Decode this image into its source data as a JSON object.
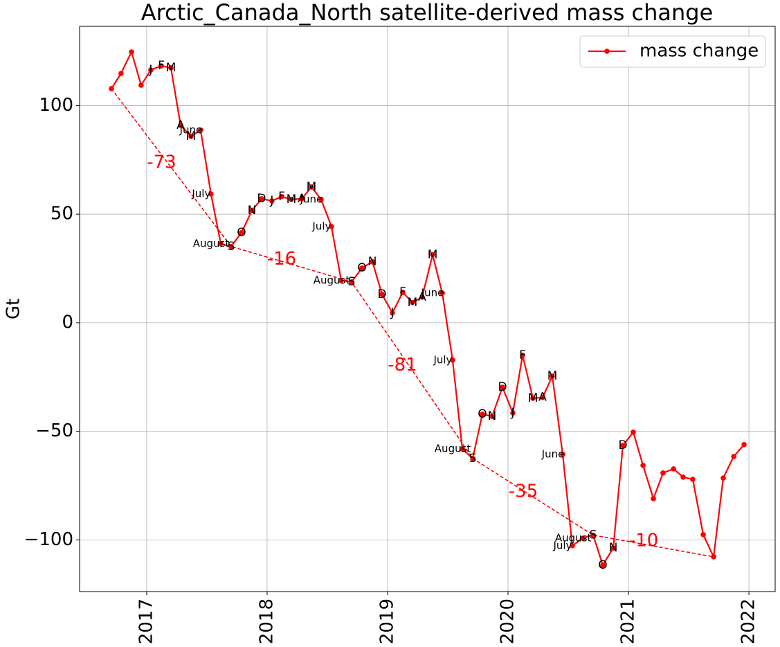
{
  "chart_data": {
    "type": "line",
    "title": "Arctic_Canada_North satellite-derived mass change",
    "y_label": "Gt",
    "xlim": [
      2016.443,
      2022.218
    ],
    "xticks": [
      2017,
      2018,
      2019,
      2020,
      2021,
      2022
    ],
    "ylim": [
      -123.8,
      136.5
    ],
    "yticks": [
      {
        "value": -100,
        "label": "−100"
      },
      {
        "value": -50,
        "label": "−50"
      },
      0,
      50,
      100
    ],
    "grid": true,
    "legend": "upper right",
    "series": [
      {
        "name": "mass change",
        "color": "#ff0000",
        "x": [
          2016.707,
          2016.787,
          2016.874,
          2016.954,
          2017.034,
          2017.121,
          2017.201,
          2017.282,
          2017.368,
          2017.448,
          2017.534,
          2017.615,
          2017.701,
          2017.787,
          2017.874,
          2017.954,
          2018.04,
          2018.121,
          2018.201,
          2018.287,
          2018.368,
          2018.448,
          2018.534,
          2018.615,
          2018.701,
          2018.787,
          2018.874,
          2018.954,
          2019.04,
          2019.126,
          2019.207,
          2019.287,
          2019.374,
          2019.454,
          2019.54,
          2019.621,
          2019.707,
          2019.787,
          2019.868,
          2019.954,
          2020.04,
          2020.121,
          2020.207,
          2020.287,
          2020.368,
          2020.454,
          2020.534,
          2020.621,
          2020.707,
          2020.787,
          2020.874,
          2020.954,
          2021.04,
          2021.121,
          2021.207,
          2021.287,
          2021.374,
          2021.454,
          2021.534,
          2021.621,
          2021.707,
          2021.787,
          2021.874,
          2021.96
        ],
        "values": [
          107.8,
          114.8,
          124.7,
          109.4,
          116.4,
          118.3,
          117.4,
          90.9,
          85.8,
          88.7,
          59.3,
          36.4,
          35.1,
          41.5,
          51.7,
          57.1,
          56.1,
          58.1,
          56.8,
          57.1,
          62.5,
          56.8,
          44.3,
          19.5,
          18.8,
          25.2,
          28.1,
          13.1,
          4.5,
          14.0,
          9.3,
          11.8,
          31.3,
          13.7,
          -17.2,
          -58.1,
          -62.5,
          -42.1,
          -43.1,
          -29.7,
          -41.5,
          -15.0,
          -34.8,
          -34.4,
          -24.6,
          -60.6,
          -102.7,
          -99.2,
          -97.8,
          -111.6,
          -103.7,
          -56.5,
          -50.4,
          -65.7,
          -81.0,
          -69.2,
          -67.3,
          -71.1,
          -72.1,
          -97.6,
          -107.8,
          -71.5,
          -61.6,
          -56.1
        ],
        "point_labels": [
          null,
          null,
          null,
          null,
          "J",
          "F",
          "M",
          "A",
          "M",
          "June",
          "July",
          "August",
          "S",
          "O",
          "N",
          "D",
          "J",
          "F",
          "M",
          "A",
          "M",
          "June",
          "July",
          "August",
          "S",
          "O",
          "N",
          "D",
          "J",
          "F",
          "M",
          "A",
          "M",
          "June",
          "July",
          "August",
          "S",
          "O",
          "N",
          "D",
          "J",
          "F",
          "M",
          "A",
          "M",
          "June",
          "July",
          "August",
          "S",
          "O",
          "N",
          "D",
          null,
          null,
          null,
          null,
          null,
          null,
          null,
          null,
          null,
          null,
          null,
          null
        ]
      }
    ],
    "trend": {
      "color": "#ff0000",
      "x": [
        2016.707,
        2017.701,
        2018.701,
        2019.707,
        2020.707,
        2021.707
      ],
      "values": [
        107.8,
        35.1,
        18.8,
        -62.5,
        -97.8,
        -107.8
      ],
      "changes": [
        -73,
        -16,
        -81,
        -35,
        -10
      ]
    }
  }
}
